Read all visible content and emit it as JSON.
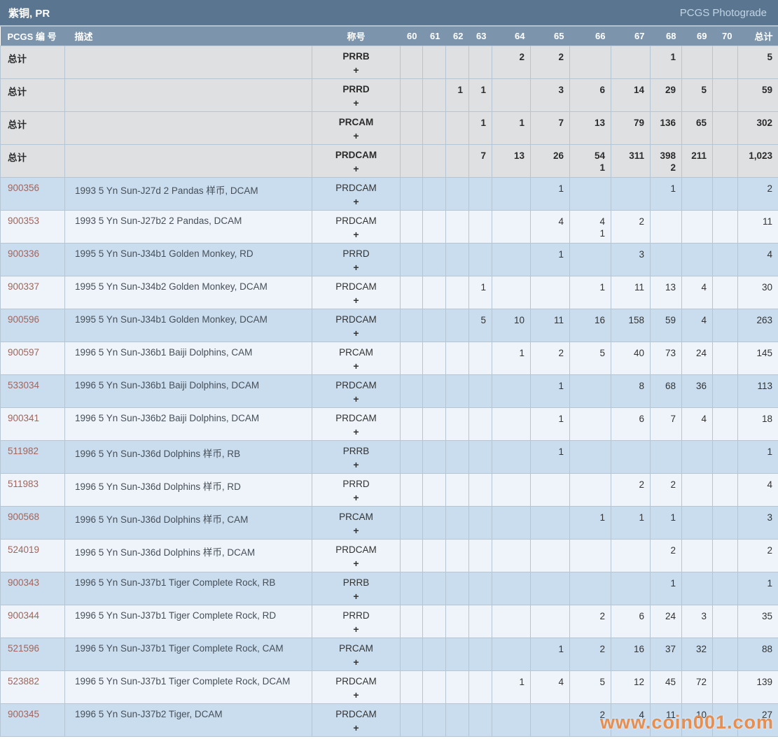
{
  "header": {
    "title": "紫铜, PR",
    "right_link": "PCGS Photograde"
  },
  "columns": {
    "pcgs": "PCGS 编 号",
    "description": "描述",
    "designation": "称号",
    "grades": [
      "60",
      "61",
      "62",
      "63",
      "64",
      "65",
      "66",
      "67",
      "68",
      "69",
      "70"
    ],
    "total": "总计"
  },
  "rows": [
    {
      "type": "total",
      "pcgs": "总计",
      "description": "",
      "designation": "PRRB",
      "plus": "+",
      "grades": [
        "",
        "",
        "",
        "",
        "2",
        "2",
        "",
        "",
        "1",
        "",
        ""
      ],
      "total": "5"
    },
    {
      "type": "total",
      "pcgs": "总计",
      "description": "",
      "designation": "PRRD",
      "plus": "+",
      "grades": [
        "",
        "",
        "1",
        "1",
        "",
        "3",
        "6",
        "14",
        "29",
        "5",
        ""
      ],
      "total": "59"
    },
    {
      "type": "total",
      "pcgs": "总计",
      "description": "",
      "designation": "PRCAM",
      "plus": "+",
      "grades": [
        "",
        "",
        "",
        "1",
        "1",
        "7",
        "13",
        "79",
        "136",
        "65",
        ""
      ],
      "total": "302"
    },
    {
      "type": "total",
      "pcgs": "总计",
      "description": "",
      "designation": "PRDCAM",
      "plus": "+",
      "grades": [
        "",
        "",
        "",
        "7",
        "13",
        "26",
        "54\n1",
        "311",
        "398\n2",
        "211",
        ""
      ],
      "total": "1,023"
    },
    {
      "type": "data",
      "pcgs": "900356",
      "description": "1993 5 Yn Sun-J27d 2 Pandas 样币, DCAM",
      "designation": "PRDCAM",
      "plus": "+",
      "grades": [
        "",
        "",
        "",
        "",
        "",
        "1",
        "",
        "",
        "1",
        "",
        ""
      ],
      "total": "2"
    },
    {
      "type": "data",
      "pcgs": "900353",
      "description": "1993 5 Yn Sun-J27b2 2 Pandas, DCAM",
      "designation": "PRDCAM",
      "plus": "+",
      "grades": [
        "",
        "",
        "",
        "",
        "",
        "4",
        "4\n1",
        "2",
        "",
        "",
        ""
      ],
      "total": "11"
    },
    {
      "type": "data",
      "pcgs": "900336",
      "description": "1995 5 Yn Sun-J34b1 Golden Monkey, RD",
      "designation": "PRRD",
      "plus": "+",
      "grades": [
        "",
        "",
        "",
        "",
        "",
        "1",
        "",
        "3",
        "",
        "",
        ""
      ],
      "total": "4"
    },
    {
      "type": "data",
      "pcgs": "900337",
      "description": "1995 5 Yn Sun-J34b2 Golden Monkey, DCAM",
      "designation": "PRDCAM",
      "plus": "+",
      "grades": [
        "",
        "",
        "",
        "1",
        "",
        "",
        "1",
        "11",
        "13",
        "4",
        ""
      ],
      "total": "30"
    },
    {
      "type": "data",
      "pcgs": "900596",
      "description": "1995 5 Yn Sun-J34b1 Golden Monkey, DCAM",
      "designation": "PRDCAM",
      "plus": "+",
      "grades": [
        "",
        "",
        "",
        "5",
        "10",
        "11",
        "16",
        "158",
        "59",
        "4",
        ""
      ],
      "total": "263"
    },
    {
      "type": "data",
      "pcgs": "900597",
      "description": "1996 5 Yn Sun-J36b1 Baiji Dolphins, CAM",
      "designation": "PRCAM",
      "plus": "+",
      "grades": [
        "",
        "",
        "",
        "",
        "1",
        "2",
        "5",
        "40",
        "73",
        "24",
        ""
      ],
      "total": "145"
    },
    {
      "type": "data",
      "pcgs": "533034",
      "description": "1996 5 Yn Sun-J36b1 Baiji Dolphins, DCAM",
      "designation": "PRDCAM",
      "plus": "+",
      "grades": [
        "",
        "",
        "",
        "",
        "",
        "1",
        "",
        "8",
        "68",
        "36",
        ""
      ],
      "total": "113"
    },
    {
      "type": "data",
      "pcgs": "900341",
      "description": "1996 5 Yn Sun-J36b2 Baiji Dolphins, DCAM",
      "designation": "PRDCAM",
      "plus": "+",
      "grades": [
        "",
        "",
        "",
        "",
        "",
        "1",
        "",
        "6",
        "7",
        "4",
        ""
      ],
      "total": "18"
    },
    {
      "type": "data",
      "pcgs": "511982",
      "description": "1996 5 Yn Sun-J36d Dolphins 样币, RB",
      "designation": "PRRB",
      "plus": "+",
      "grades": [
        "",
        "",
        "",
        "",
        "",
        "1",
        "",
        "",
        "",
        "",
        ""
      ],
      "total": "1"
    },
    {
      "type": "data",
      "pcgs": "511983",
      "description": "1996 5 Yn Sun-J36d Dolphins 样币, RD",
      "designation": "PRRD",
      "plus": "+",
      "grades": [
        "",
        "",
        "",
        "",
        "",
        "",
        "",
        "2",
        "2",
        "",
        ""
      ],
      "total": "4"
    },
    {
      "type": "data",
      "pcgs": "900568",
      "description": "1996 5 Yn Sun-J36d Dolphins 样币, CAM",
      "designation": "PRCAM",
      "plus": "+",
      "grades": [
        "",
        "",
        "",
        "",
        "",
        "",
        "1",
        "1",
        "1",
        "",
        ""
      ],
      "total": "3"
    },
    {
      "type": "data",
      "pcgs": "524019",
      "description": "1996 5 Yn Sun-J36d Dolphins 样币, DCAM",
      "designation": "PRDCAM",
      "plus": "+",
      "grades": [
        "",
        "",
        "",
        "",
        "",
        "",
        "",
        "",
        "2",
        "",
        ""
      ],
      "total": "2"
    },
    {
      "type": "data",
      "pcgs": "900343",
      "description": "1996 5 Yn Sun-J37b1 Tiger Complete Rock, RB",
      "designation": "PRRB",
      "plus": "+",
      "grades": [
        "",
        "",
        "",
        "",
        "",
        "",
        "",
        "",
        "1",
        "",
        ""
      ],
      "total": "1"
    },
    {
      "type": "data",
      "pcgs": "900344",
      "description": "1996 5 Yn Sun-J37b1 Tiger Complete Rock, RD",
      "designation": "PRRD",
      "plus": "+",
      "grades": [
        "",
        "",
        "",
        "",
        "",
        "",
        "2",
        "6",
        "24",
        "3",
        ""
      ],
      "total": "35"
    },
    {
      "type": "data",
      "pcgs": "521596",
      "description": "1996 5 Yn Sun-J37b1 Tiger Complete Rock, CAM",
      "designation": "PRCAM",
      "plus": "+",
      "grades": [
        "",
        "",
        "",
        "",
        "",
        "1",
        "2",
        "16",
        "37",
        "32",
        ""
      ],
      "total": "88"
    },
    {
      "type": "data",
      "pcgs": "523882",
      "description": "1996 5 Yn Sun-J37b1 Tiger Complete Rock, DCAM",
      "designation": "PRDCAM",
      "plus": "+",
      "grades": [
        "",
        "",
        "",
        "",
        "1",
        "4",
        "5",
        "12",
        "45",
        "72",
        ""
      ],
      "total": "139"
    },
    {
      "type": "data",
      "pcgs": "900345",
      "description": "1996 5 Yn Sun-J37b2 Tiger, DCAM",
      "designation": "PRDCAM",
      "plus": "+",
      "grades": [
        "",
        "",
        "",
        "",
        "",
        "",
        "2",
        "4",
        "11",
        "10",
        ""
      ],
      "total": "27"
    }
  ],
  "watermark": "www.coin001.com",
  "colors": {
    "title_bar": "#5a7590",
    "header_row": "#7d95ac",
    "summary_row_bg": "#dfe0e2",
    "row_blue": "#c9ddee",
    "row_light": "#eef4f9",
    "grid_border": "#b6c5d3",
    "pcgs_link": "#a0655c",
    "photograde_link": "#c2d5e4",
    "watermark": "#e87d32"
  }
}
